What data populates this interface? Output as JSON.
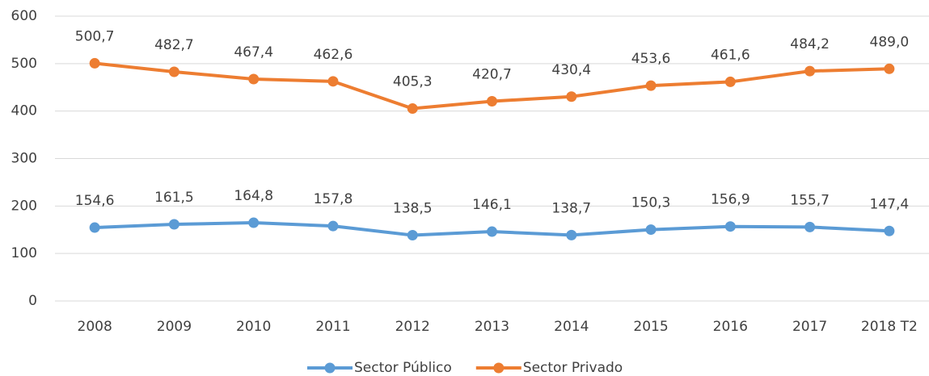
{
  "chart_data": {
    "type": "line",
    "categories": [
      "2008",
      "2009",
      "2010",
      "2011",
      "2012",
      "2013",
      "2014",
      "2015",
      "2016",
      "2017",
      "2018 T2"
    ],
    "series": [
      {
        "name": "Sector Público",
        "color": "#5b9bd5",
        "values": [
          154.6,
          161.5,
          164.8,
          157.8,
          138.5,
          146.1,
          138.7,
          150.3,
          156.9,
          155.7,
          147.4
        ],
        "value_labels": [
          "154,6",
          "161,5",
          "164,8",
          "157,8",
          "138,5",
          "146,1",
          "138,7",
          "150,3",
          "156,9",
          "155,7",
          "147,4"
        ]
      },
      {
        "name": "Sector Privado",
        "color": "#ed7d31",
        "values": [
          500.7,
          482.7,
          467.4,
          462.6,
          405.3,
          420.7,
          430.4,
          453.6,
          461.6,
          484.2,
          489.0
        ],
        "value_labels": [
          "500,7",
          "482,7",
          "467,4",
          "462,6",
          "405,3",
          "420,7",
          "430,4",
          "453,6",
          "461,6",
          "484,2",
          "489,0"
        ]
      }
    ],
    "ylim": [
      0,
      600
    ],
    "yticks": [
      0,
      100,
      200,
      300,
      400,
      500,
      600
    ],
    "grid": true,
    "legend": "bottom"
  }
}
